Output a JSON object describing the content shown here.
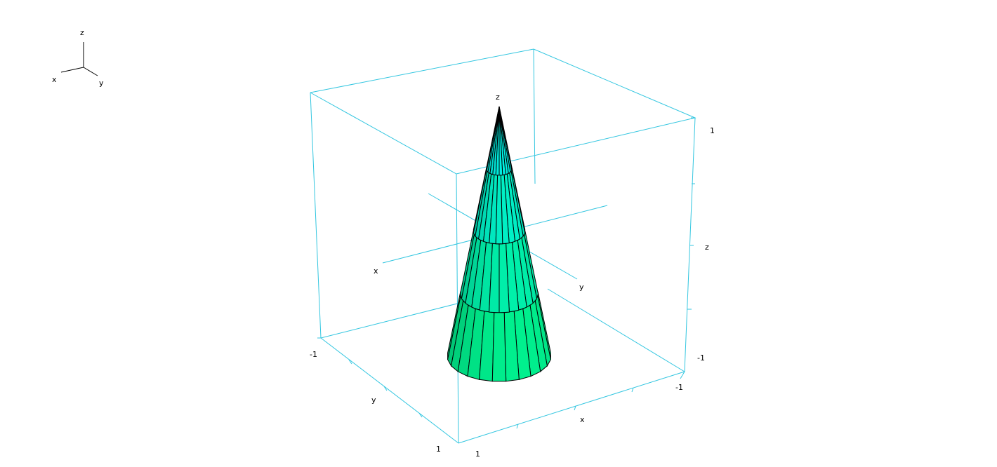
{
  "axes_labels": {
    "gizmo_x": "x",
    "gizmo_y": "y",
    "gizmo_z": "z",
    "top_z": "z",
    "inner_x": "x",
    "inner_y": "y",
    "side_z": "z",
    "bottom_y": "y",
    "bottom_x": "x"
  },
  "tick_labels": {
    "z_top": "1",
    "z_bottom": "-1",
    "y_start": "-1",
    "y_end": "1",
    "x_start": "1",
    "x_end": "-1"
  },
  "colors": {
    "box": "#33c6e0",
    "surface_top": "#00f0f0",
    "surface_bottom": "#00f080",
    "edge": "#000000"
  },
  "surface": {
    "shape": "cone",
    "facets_around": 24,
    "bands": 4
  }
}
